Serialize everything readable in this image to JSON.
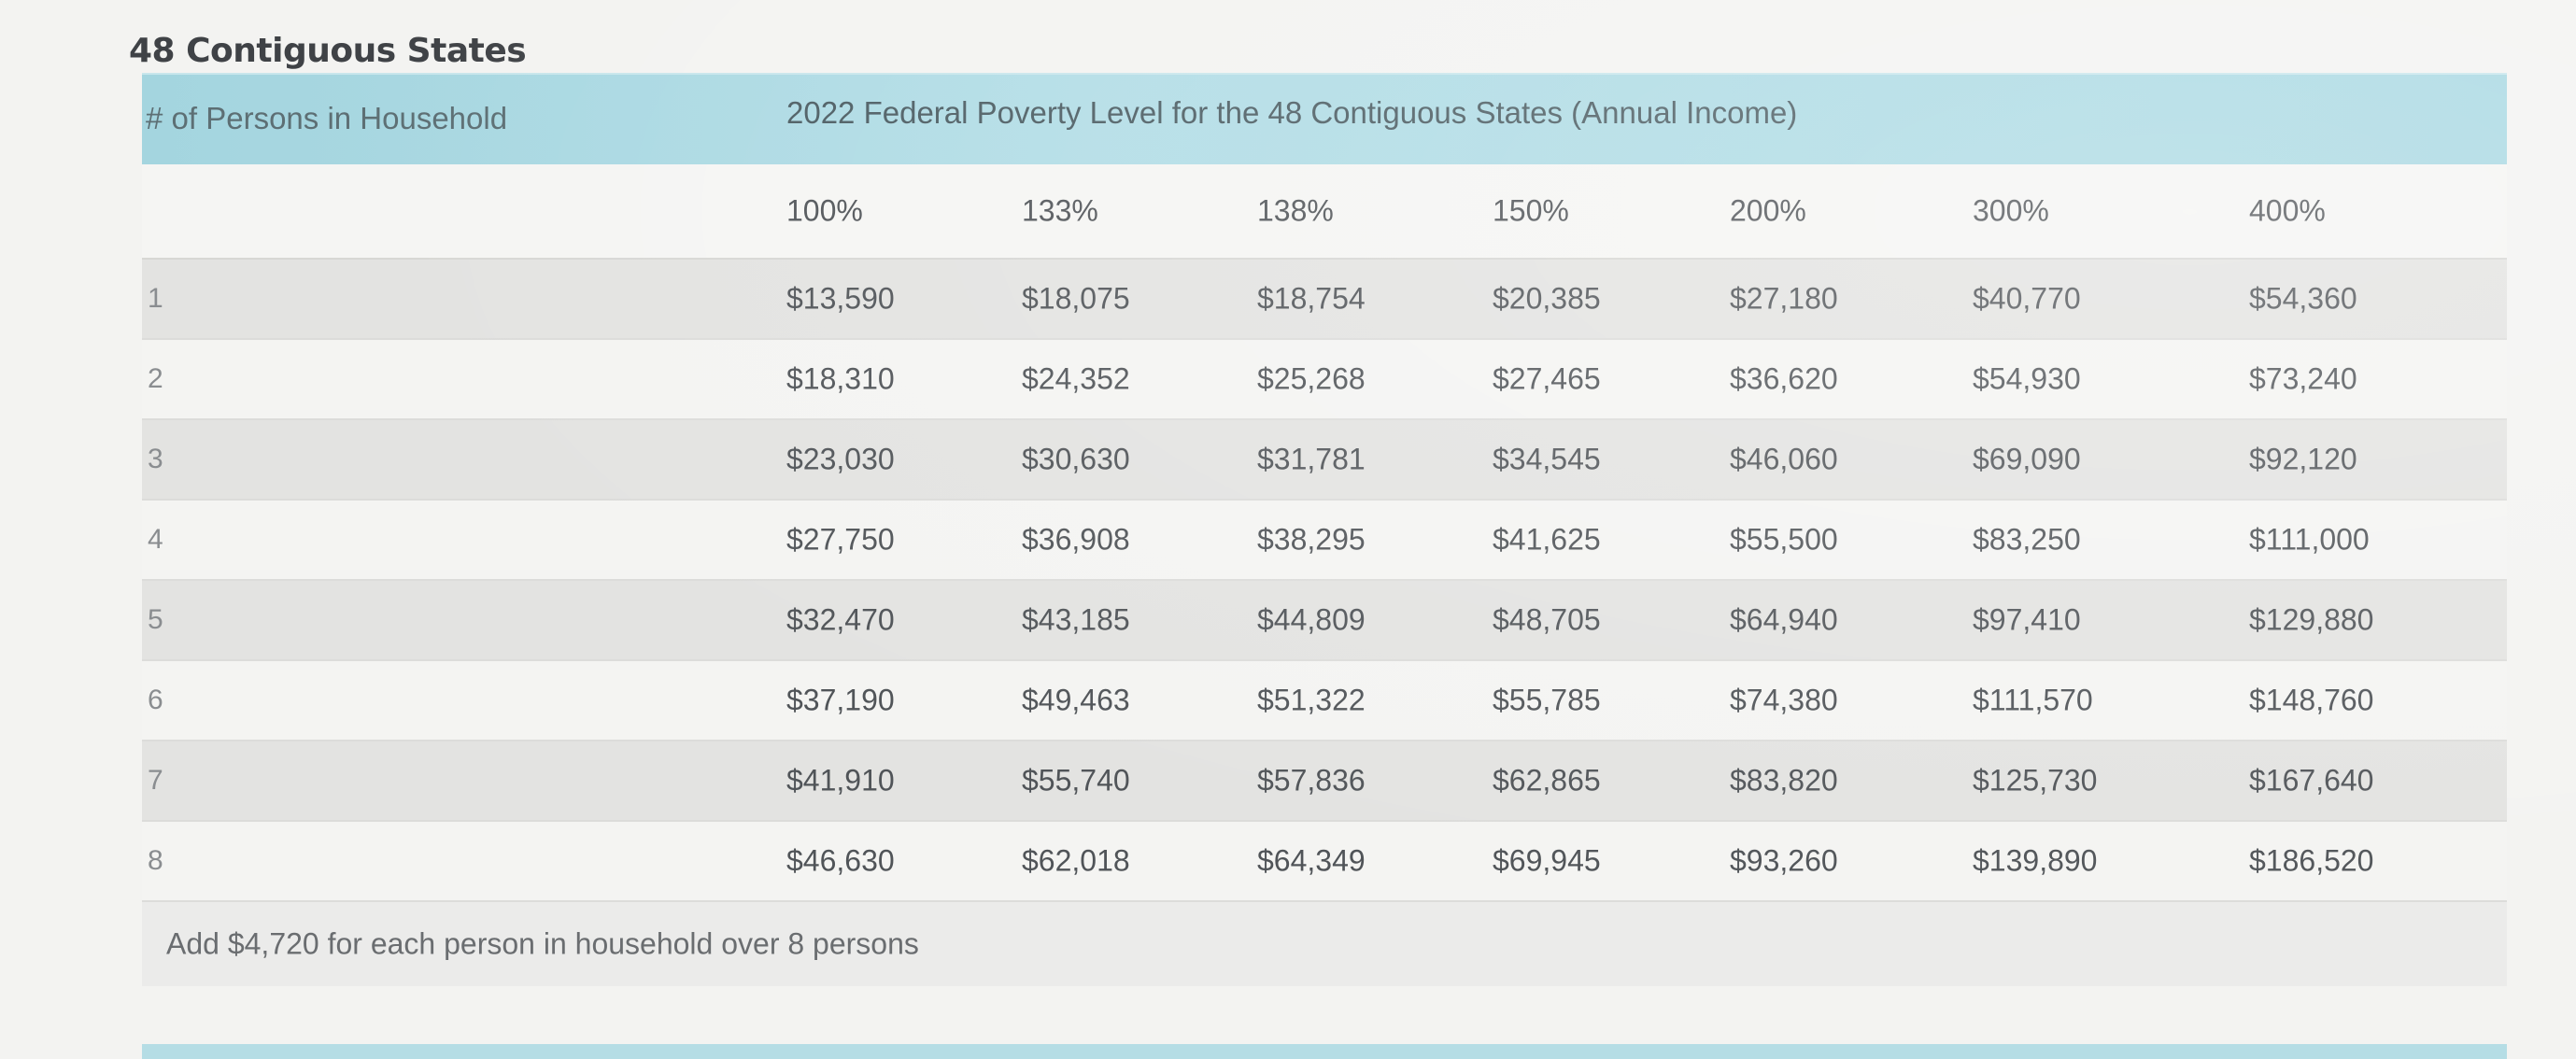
{
  "section_title": "48 Contiguous States",
  "header": {
    "household_label": "# of Persons in Household",
    "fpl_label": "2022 Federal Poverty Level for the 48 Contiguous States (Annual Income)"
  },
  "percent_columns": [
    "100%",
    "133%",
    "138%",
    "150%",
    "200%",
    "300%",
    "400%"
  ],
  "rows": [
    {
      "persons": "1",
      "values": [
        "$13,590",
        "$18,075",
        "$18,754",
        "$20,385",
        "$27,180",
        "$40,770",
        "$54,360"
      ]
    },
    {
      "persons": "2",
      "values": [
        "$18,310",
        "$24,352",
        "$25,268",
        "$27,465",
        "$36,620",
        "$54,930",
        "$73,240"
      ]
    },
    {
      "persons": "3",
      "values": [
        "$23,030",
        "$30,630",
        "$31,781",
        "$34,545",
        "$46,060",
        "$69,090",
        "$92,120"
      ]
    },
    {
      "persons": "4",
      "values": [
        "$27,750",
        "$36,908",
        "$38,295",
        "$41,625",
        "$55,500",
        "$83,250",
        "$111,000"
      ]
    },
    {
      "persons": "5",
      "values": [
        "$32,470",
        "$43,185",
        "$44,809",
        "$48,705",
        "$64,940",
        "$97,410",
        "$129,880"
      ]
    },
    {
      "persons": "6",
      "values": [
        "$37,190",
        "$49,463",
        "$51,322",
        "$55,785",
        "$74,380",
        "$111,570",
        "$148,760"
      ]
    },
    {
      "persons": "7",
      "values": [
        "$41,910",
        "$55,740",
        "$57,836",
        "$62,865",
        "$83,820",
        "$125,730",
        "$167,640"
      ]
    },
    {
      "persons": "8",
      "values": [
        "$46,630",
        "$62,018",
        "$64,349",
        "$69,945",
        "$93,260",
        "$139,890",
        "$186,520"
      ]
    }
  ],
  "footnote": "Add $4,720 for each person in household over 8 persons",
  "colors": {
    "header_bg": "#a8d8e2",
    "shaded_row": "#e3e3e1",
    "plain_row": "#f4f4f2"
  }
}
